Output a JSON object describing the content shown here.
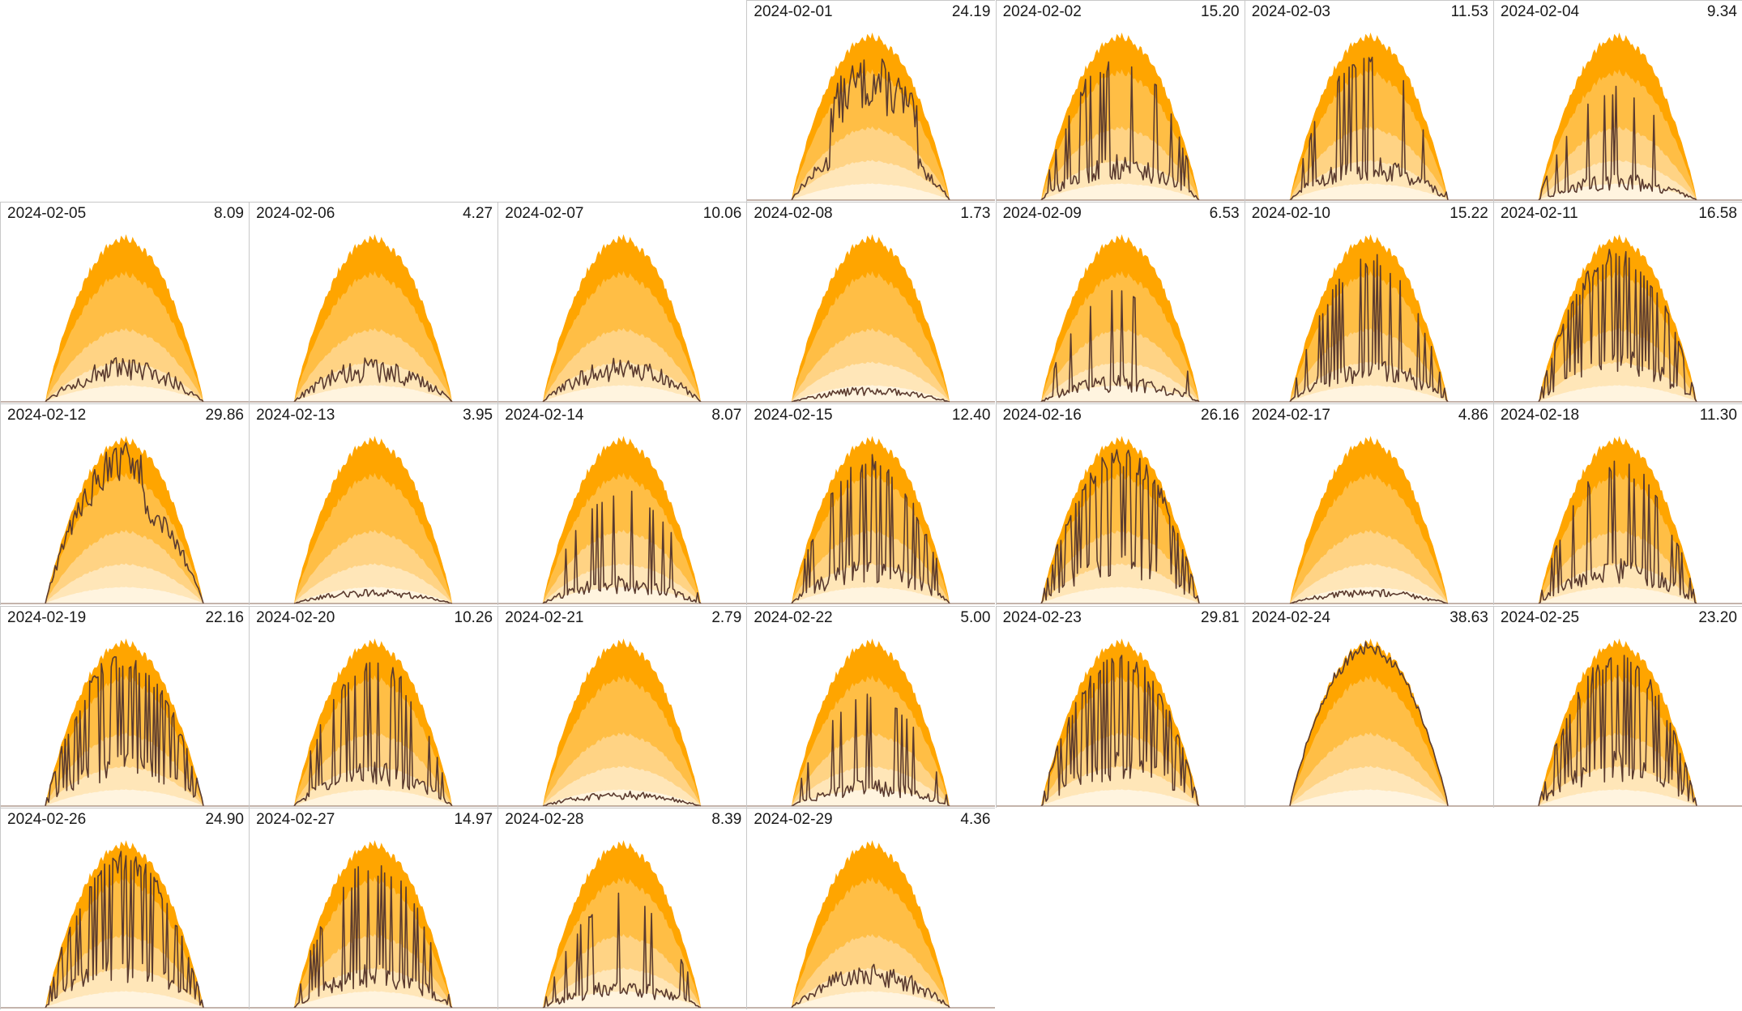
{
  "chart_data": {
    "type": "area",
    "layout": "calendar small multiples, 7 columns (Mon–Sun), curve envelopes with daily total in top-right",
    "colors": {
      "band_outer": "#ffa500",
      "band_2": "#ffbe45",
      "band_3": "#ffd384",
      "band_4": "#ffe6b8",
      "band_inner": "#fff4df",
      "actual_line": "#5a3a2e",
      "cell_border": "#c8c8c8"
    },
    "first_weekday_offset": 3,
    "days": [
      {
        "date": "2024-02-01",
        "total": "24.19",
        "profile": "partial_high"
      },
      {
        "date": "2024-02-02",
        "total": "15.20",
        "profile": "spiky_mid"
      },
      {
        "date": "2024-02-03",
        "total": "11.53",
        "profile": "spiky_mid"
      },
      {
        "date": "2024-02-04",
        "total": "9.34",
        "profile": "spiky_low"
      },
      {
        "date": "2024-02-05",
        "total": "8.09",
        "profile": "low_wavy"
      },
      {
        "date": "2024-02-06",
        "total": "4.27",
        "profile": "low_wavy"
      },
      {
        "date": "2024-02-07",
        "total": "10.06",
        "profile": "low_wavy"
      },
      {
        "date": "2024-02-08",
        "total": "1.73",
        "profile": "flat"
      },
      {
        "date": "2024-02-09",
        "total": "6.53",
        "profile": "spiky_low"
      },
      {
        "date": "2024-02-10",
        "total": "15.22",
        "profile": "spiky_mid"
      },
      {
        "date": "2024-02-11",
        "total": "16.58",
        "profile": "spiky_high"
      },
      {
        "date": "2024-02-12",
        "total": "29.86",
        "profile": "high"
      },
      {
        "date": "2024-02-13",
        "total": "3.95",
        "profile": "flat"
      },
      {
        "date": "2024-02-14",
        "total": "8.07",
        "profile": "spiky_low"
      },
      {
        "date": "2024-02-15",
        "total": "12.40",
        "profile": "spiky_mid"
      },
      {
        "date": "2024-02-16",
        "total": "26.16",
        "profile": "spiky_high"
      },
      {
        "date": "2024-02-17",
        "total": "4.86",
        "profile": "flat"
      },
      {
        "date": "2024-02-18",
        "total": "11.30",
        "profile": "spiky_mid"
      },
      {
        "date": "2024-02-19",
        "total": "22.16",
        "profile": "spiky_high"
      },
      {
        "date": "2024-02-20",
        "total": "10.26",
        "profile": "spiky_mid"
      },
      {
        "date": "2024-02-21",
        "total": "2.79",
        "profile": "flat"
      },
      {
        "date": "2024-02-22",
        "total": "5.00",
        "profile": "spiky_low"
      },
      {
        "date": "2024-02-23",
        "total": "29.81",
        "profile": "spiky_high"
      },
      {
        "date": "2024-02-24",
        "total": "38.63",
        "profile": "clear"
      },
      {
        "date": "2024-02-25",
        "total": "23.20",
        "profile": "spiky_high"
      },
      {
        "date": "2024-02-26",
        "total": "24.90",
        "profile": "spiky_high"
      },
      {
        "date": "2024-02-27",
        "total": "14.97",
        "profile": "spiky_mid"
      },
      {
        "date": "2024-02-28",
        "total": "8.39",
        "profile": "spiky_low"
      },
      {
        "date": "2024-02-29",
        "total": "4.36",
        "profile": "low_wavy"
      }
    ]
  }
}
